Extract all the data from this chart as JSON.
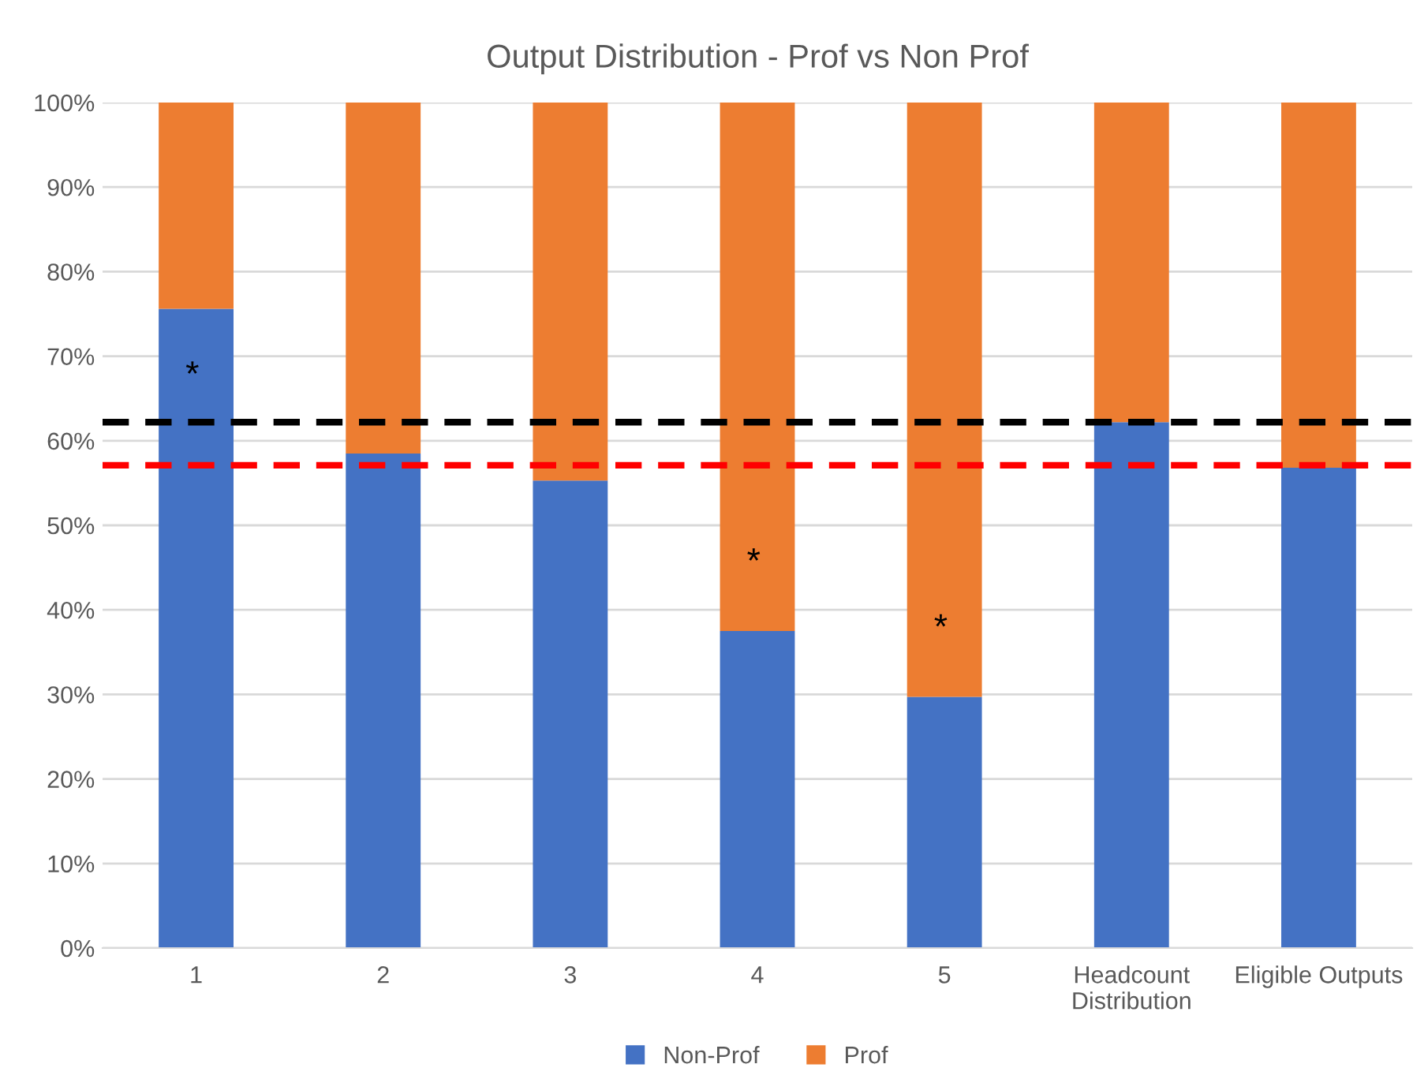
{
  "chart_data": {
    "type": "bar",
    "title": "Output Distribution - Prof vs Non Prof",
    "stacked": true,
    "categories": [
      "1",
      "2",
      "3",
      "4",
      "5",
      "Headcount\nDistribution",
      "Eligible Outputs"
    ],
    "series": [
      {
        "name": "Non-Prof",
        "color": "#4472c4",
        "values": [
          75.6,
          58.5,
          55.3,
          37.5,
          29.7,
          62.2,
          56.8
        ],
        "value_labels": [
          "*",
          null,
          null,
          null,
          null,
          null,
          null
        ]
      },
      {
        "name": "Prof",
        "color": "#ed7d31",
        "values": [
          24.4,
          41.5,
          44.7,
          62.5,
          70.3,
          37.8,
          43.2
        ],
        "value_labels": [
          null,
          null,
          null,
          "*",
          "*",
          null,
          null
        ]
      }
    ],
    "ylim": [
      0,
      100
    ],
    "yticks": [
      {
        "value": 0,
        "label": "0%"
      },
      {
        "value": 10,
        "label": "10%"
      },
      {
        "value": 20,
        "label": "20%"
      },
      {
        "value": 30,
        "label": "30%"
      },
      {
        "value": 40,
        "label": "40%"
      },
      {
        "value": 50,
        "label": "50%"
      },
      {
        "value": 60,
        "label": "60%"
      },
      {
        "value": 70,
        "label": "70%"
      },
      {
        "value": 80,
        "label": "80%"
      },
      {
        "value": 90,
        "label": "90%"
      },
      {
        "value": 100,
        "label": "100%"
      }
    ],
    "ref_lines": [
      {
        "axis": "y",
        "value": 62.2,
        "color": "#000000",
        "line_style": "dashed"
      },
      {
        "axis": "y",
        "value": 57.1,
        "color": "#ff0000",
        "line_style": "dashed"
      }
    ],
    "grid": "y",
    "legend": "bottom"
  }
}
